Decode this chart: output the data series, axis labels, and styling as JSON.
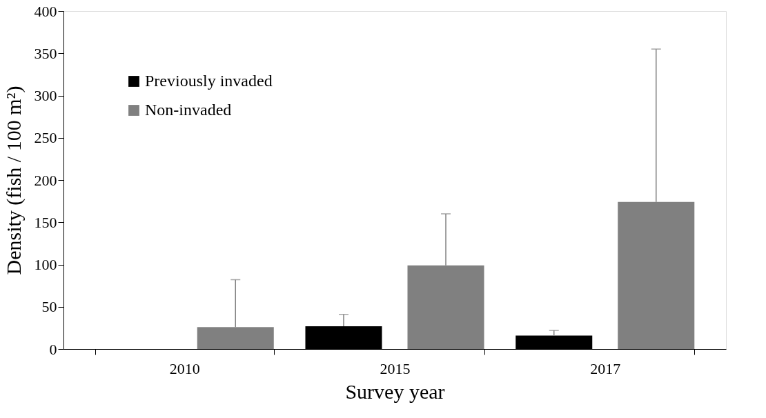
{
  "chart_data": {
    "type": "bar",
    "xlabel": "Survey year",
    "ylabel": "Density (fish / 100 m²)",
    "categories": [
      "2010",
      "2015",
      "2017"
    ],
    "series": [
      {
        "name": "Previously invaded",
        "color": "#000000",
        "values": [
          null,
          27,
          16
        ],
        "errors": [
          null,
          [
            27,
            41
          ],
          [
            16,
            22
          ]
        ]
      },
      {
        "name": "Non-invaded",
        "color": "#808080",
        "values": [
          26,
          99,
          174
        ],
        "errors": [
          [
            26,
            82
          ],
          [
            99,
            160
          ],
          [
            174,
            355
          ]
        ]
      }
    ],
    "ylim": [
      0,
      400
    ],
    "yticks": [
      0,
      50,
      100,
      150,
      200,
      250,
      300,
      350,
      400
    ],
    "grid": false,
    "legend": "top left"
  }
}
